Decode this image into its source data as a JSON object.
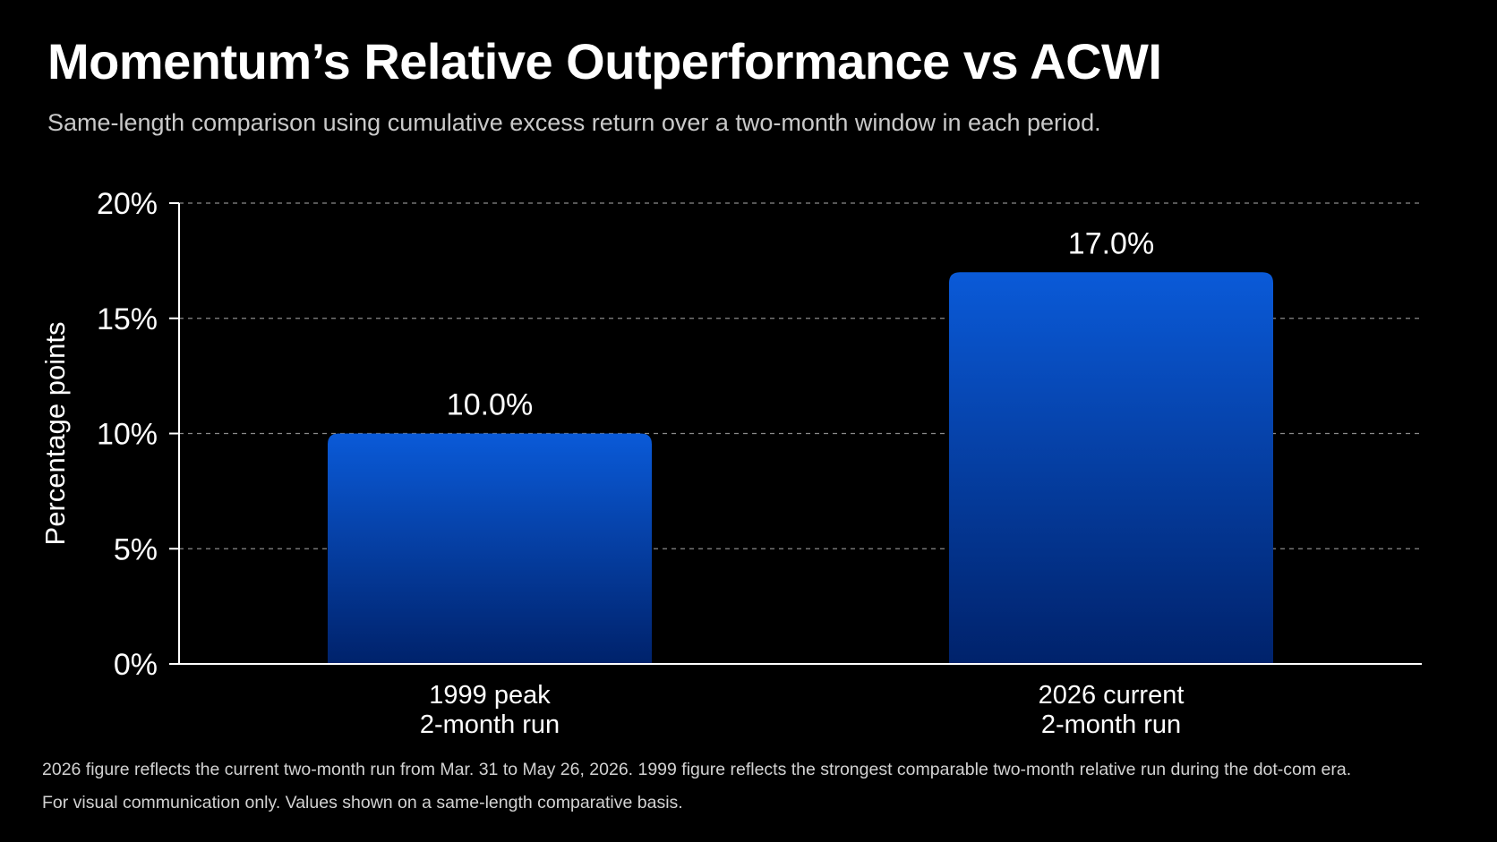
{
  "header": {
    "title": "Momentum’s Relative Outperformance vs ACWI",
    "subtitle": "Same-length comparison using cumulative excess return over a two-month window in each period."
  },
  "chart_data": {
    "type": "bar",
    "title": "Momentum’s Relative Outperformance vs ACWI",
    "subtitle": "Same-length comparison using cumulative excess return over a two-month window in each period.",
    "categories": [
      [
        "1999 peak",
        "2-month run"
      ],
      [
        "2026 current",
        "2-month run"
      ]
    ],
    "values": [
      10.0,
      17.0
    ],
    "data_labels": [
      "10.0%",
      "17.0%"
    ],
    "ylabel": "Percentage points",
    "xlabel": "",
    "ylim": [
      0,
      20
    ],
    "yticks": [
      0,
      5,
      10,
      15,
      20
    ],
    "ytick_labels": [
      "0%",
      "5%",
      "10%",
      "15%",
      "20%"
    ],
    "grid": true,
    "legend": "none",
    "colors": {
      "bar_top": "#0a5ad8",
      "bar_bottom": "#00226b",
      "grid": "#8a8a8a",
      "axis": "#ffffff",
      "background": "#000000"
    }
  },
  "footnotes": [
    "2026 figure reflects the current two-month run from Mar. 31 to May 26, 2026.  1999 figure reflects the strongest comparable two-month relative run during the dot-com era.",
    "For visual communication only.  Values shown on a same-length comparative basis."
  ]
}
